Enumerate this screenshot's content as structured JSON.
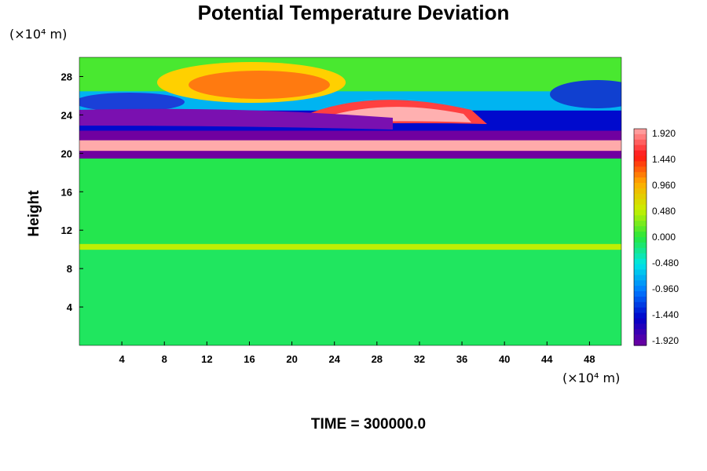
{
  "chart_data": {
    "type": "heatmap",
    "title": "Potential Temperature Deviation",
    "ylabel": "Height",
    "x_unit": "(×10⁴ m)",
    "y_unit": "(×10⁴ m)",
    "footer": "TIME = 300000.0",
    "x_ticks": [
      "4",
      "8",
      "12",
      "16",
      "20",
      "24",
      "28",
      "32",
      "36",
      "40",
      "44",
      "48"
    ],
    "y_ticks": [
      "4",
      "8",
      "12",
      "16",
      "20",
      "24",
      "28"
    ],
    "xlim": [
      0,
      51
    ],
    "ylim": [
      0,
      30
    ],
    "colorbar": {
      "ticks": [
        "1.920",
        "1.440",
        "0.960",
        "0.480",
        "0.000",
        "-0.480",
        "-0.960",
        "-1.440",
        "-1.920"
      ],
      "range": [
        -1.92,
        1.92
      ]
    },
    "field_layers": [
      {
        "y_range": [
          0,
          10
        ],
        "value": -0.1
      },
      {
        "y_range": [
          10,
          10.6
        ],
        "value": 0.45
      },
      {
        "y_range": [
          10.6,
          19.5
        ],
        "value": -0.05
      },
      {
        "y_range": [
          19.5,
          20.3
        ],
        "value": -1.92
      },
      {
        "y_range": [
          20.3,
          21.4
        ],
        "value": 1.92
      },
      {
        "y_range": [
          21.4,
          22.4
        ],
        "value": -1.92
      },
      {
        "y_range": [
          22.4,
          24.5
        ],
        "value": -1.4
      },
      {
        "y_range": [
          24.5,
          26.5
        ],
        "value": -0.7
      },
      {
        "y_range": [
          26.5,
          30
        ],
        "value": 0.1
      }
    ]
  }
}
